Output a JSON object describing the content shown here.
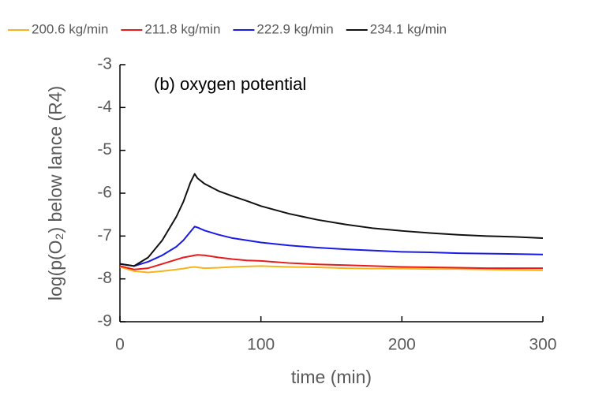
{
  "chart_data": {
    "type": "line",
    "annotation": "(b) oxygen potential",
    "x_label": "time (min)",
    "y_label": "log(p(O₂) below lance (R4)",
    "x": [
      0,
      10,
      20,
      30,
      40,
      45,
      50,
      53,
      55,
      60,
      70,
      80,
      90,
      100,
      120,
      140,
      160,
      180,
      200,
      220,
      240,
      260,
      280,
      300
    ],
    "series": [
      {
        "name": "200.6 kg/min",
        "color": "#f5b41e",
        "values": [
          -7.72,
          -7.82,
          -7.85,
          -7.82,
          -7.78,
          -7.76,
          -7.73,
          -7.72,
          -7.73,
          -7.75,
          -7.74,
          -7.72,
          -7.71,
          -7.7,
          -7.72,
          -7.73,
          -7.75,
          -7.76,
          -7.76,
          -7.77,
          -7.77,
          -7.78,
          -7.79,
          -7.8
        ]
      },
      {
        "name": "211.8 kg/min",
        "color": "#e81a1a",
        "values": [
          -7.7,
          -7.78,
          -7.75,
          -7.65,
          -7.55,
          -7.5,
          -7.47,
          -7.45,
          -7.44,
          -7.45,
          -7.5,
          -7.54,
          -7.57,
          -7.58,
          -7.63,
          -7.66,
          -7.68,
          -7.7,
          -7.72,
          -7.73,
          -7.74,
          -7.75,
          -7.75,
          -7.75
        ]
      },
      {
        "name": "222.9 kg/min",
        "color": "#1a1ae8",
        "values": [
          -7.65,
          -7.7,
          -7.6,
          -7.45,
          -7.25,
          -7.1,
          -6.9,
          -6.78,
          -6.8,
          -6.87,
          -6.97,
          -7.05,
          -7.1,
          -7.15,
          -7.22,
          -7.27,
          -7.31,
          -7.34,
          -7.37,
          -7.38,
          -7.4,
          -7.41,
          -7.42,
          -7.43
        ]
      },
      {
        "name": "234.1 kg/min",
        "color": "#111111",
        "values": [
          -7.65,
          -7.7,
          -7.5,
          -7.1,
          -6.55,
          -6.2,
          -5.75,
          -5.55,
          -5.65,
          -5.78,
          -5.95,
          -6.07,
          -6.18,
          -6.3,
          -6.48,
          -6.62,
          -6.73,
          -6.82,
          -6.88,
          -6.93,
          -6.97,
          -7.0,
          -7.02,
          -7.05
        ]
      }
    ],
    "xlim": [
      0,
      300
    ],
    "xticks": [
      0,
      100,
      200,
      300
    ],
    "ylim": [
      -9,
      -3
    ],
    "yticks": [
      -9,
      -8,
      -7,
      -6,
      -5,
      -4,
      -3
    ],
    "legend": "top"
  }
}
